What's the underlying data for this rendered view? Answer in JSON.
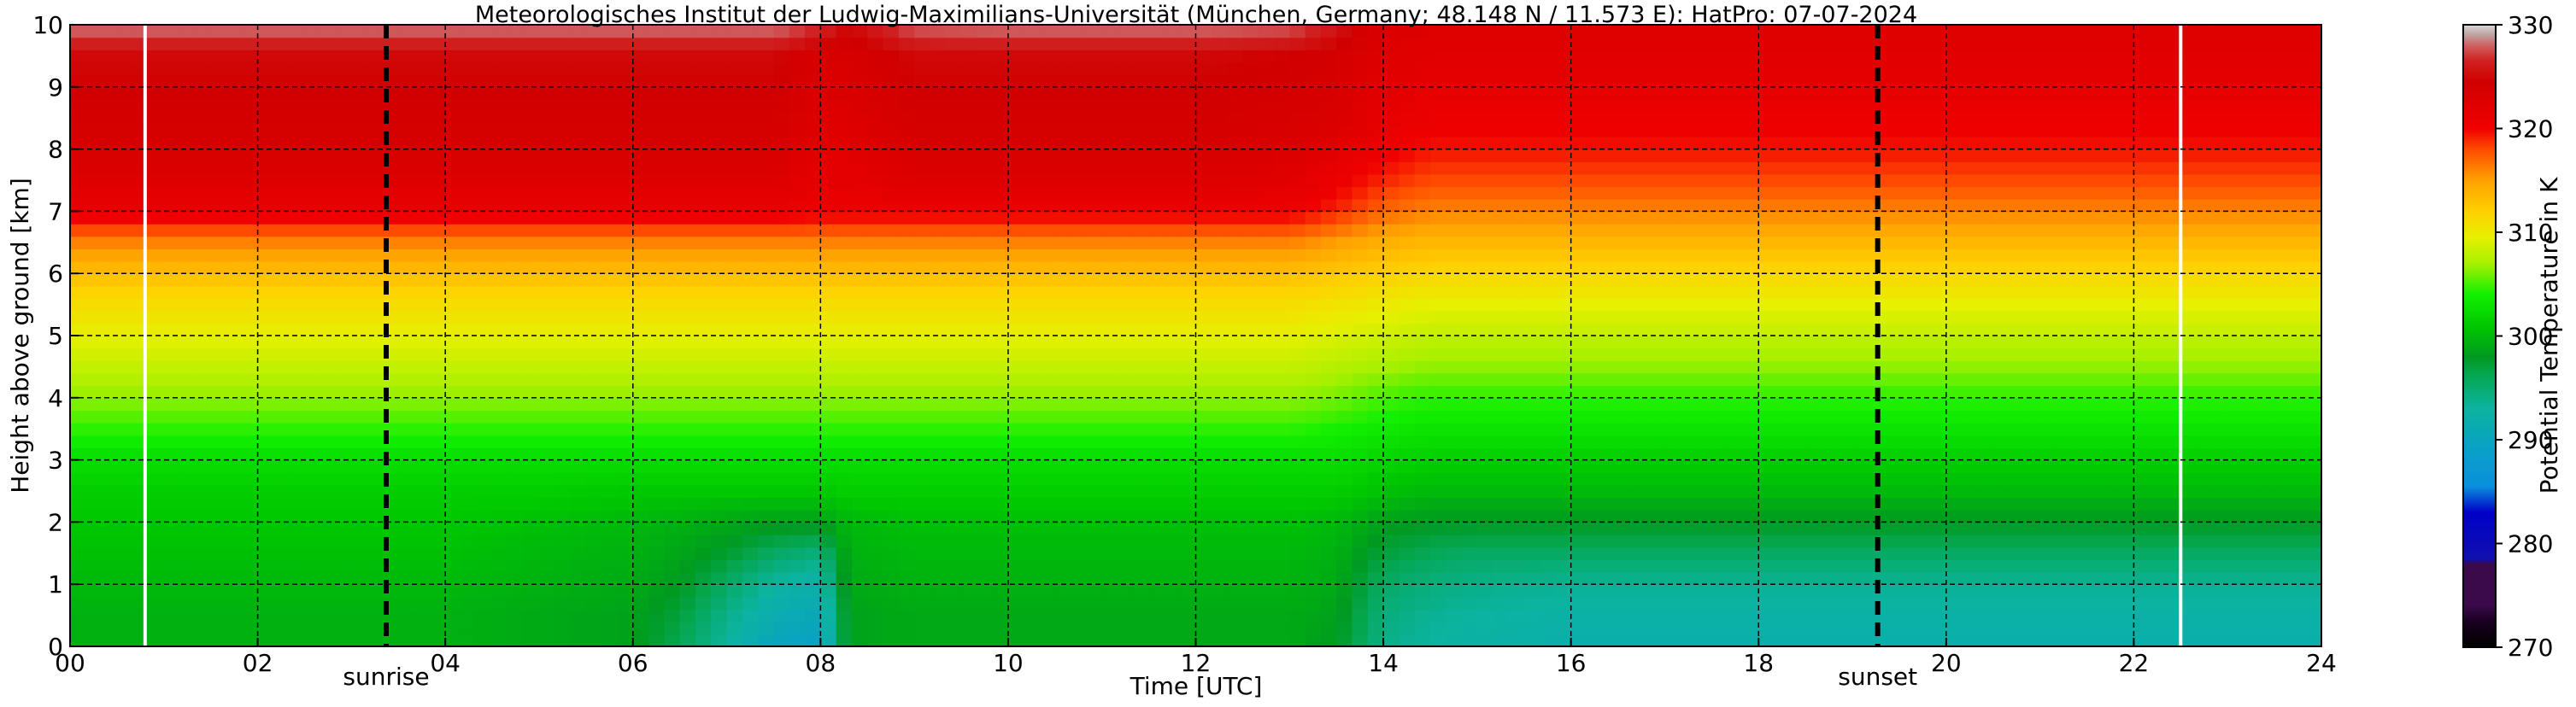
{
  "chart_data": {
    "type": "heatmap",
    "title": "Meteorologisches Institut der Ludwig-Maximilians-Universität (München, Germany; 48.148 N / 11.573 E):    HatPro: 07-07-2024",
    "xlabel": "Time [UTC]",
    "ylabel": "Height above ground [km]",
    "xlim": [
      0,
      24
    ],
    "ylim": [
      0,
      10
    ],
    "x_ticks": [
      0,
      2,
      4,
      6,
      8,
      10,
      12,
      14,
      16,
      18,
      20,
      22,
      24
    ],
    "x_tick_labels": [
      "00",
      "02",
      "04",
      "06",
      "08",
      "10",
      "12",
      "14",
      "16",
      "18",
      "20",
      "22",
      "24"
    ],
    "y_ticks": [
      0,
      1,
      2,
      3,
      4,
      5,
      6,
      7,
      8,
      9,
      10
    ],
    "y_tick_labels": [
      "0",
      "1",
      "2",
      "3",
      "4",
      "5",
      "6",
      "7",
      "8",
      "9",
      "10"
    ],
    "grid": true,
    "colorbar": {
      "label": "Potential Temperature in K",
      "range": [
        270,
        330
      ],
      "ticks": [
        270,
        280,
        290,
        300,
        310,
        320,
        330
      ],
      "tick_labels": [
        "270",
        "280",
        "290",
        "300",
        "310",
        "320",
        "330"
      ]
    },
    "markers": [
      {
        "label": "sunrise",
        "x": 3.37
      },
      {
        "label": "sunset",
        "x": 19.27
      }
    ],
    "data_gaps": [
      0.8,
      22.5
    ],
    "times": [
      0,
      1,
      2,
      3,
      4,
      5,
      6,
      6.5,
      7,
      7.5,
      8,
      8.3,
      9,
      10,
      11,
      12,
      13,
      13.5,
      14,
      14.5,
      15,
      16,
      17,
      18,
      19,
      20,
      21,
      22,
      23,
      24
    ],
    "heights": [
      0,
      0.5,
      1,
      1.5,
      2,
      2.5,
      3,
      3.5,
      4,
      4.5,
      5,
      5.5,
      6,
      6.5,
      7,
      7.5,
      8,
      8.5,
      9,
      9.5,
      10
    ],
    "values": [
      [
        299.5,
        299.5,
        299.5,
        299.5,
        299.5,
        299,
        298.5,
        296,
        293,
        290,
        289,
        298.5,
        299,
        299,
        299,
        299,
        299,
        298,
        294,
        293,
        292.5,
        292,
        292,
        292,
        292,
        292,
        292,
        292,
        292,
        292
      ],
      [
        299.5,
        299.5,
        299.5,
        299.5,
        299.5,
        299,
        298.5,
        297,
        294,
        291.5,
        290.5,
        298.5,
        299,
        299,
        299,
        299,
        299,
        298.5,
        294.5,
        293.5,
        293,
        292.5,
        292.5,
        292.5,
        292.5,
        292.5,
        292.5,
        292.5,
        292.5,
        292.5
      ],
      [
        300,
        300,
        300,
        300,
        300,
        299.5,
        299,
        298,
        295.5,
        293,
        292,
        299,
        299.5,
        299.5,
        299.5,
        299.5,
        299.5,
        299,
        295.5,
        294.5,
        294,
        293.5,
        293.5,
        293.5,
        293.5,
        293.5,
        293.5,
        293.5,
        293.5,
        293.5
      ],
      [
        300.5,
        300.5,
        300.5,
        300.5,
        300.5,
        300,
        299.5,
        298.8,
        297.5,
        295.5,
        294.5,
        299.5,
        300,
        300,
        300,
        300,
        300,
        299.5,
        297,
        296,
        295.5,
        295.5,
        295.5,
        295.5,
        295.5,
        295.5,
        295.5,
        295.5,
        295.5,
        295.5
      ],
      [
        301,
        301,
        301,
        301,
        301,
        300.5,
        300,
        299.5,
        299,
        298.5,
        298.5,
        300,
        300.5,
        300.5,
        300.5,
        300.5,
        300.5,
        300,
        298.5,
        298,
        298,
        298,
        298,
        298,
        298,
        298,
        298,
        298,
        298,
        298
      ],
      [
        301.5,
        301.5,
        301.5,
        301.5,
        301.5,
        301.5,
        301,
        301,
        301,
        301,
        301,
        301.5,
        301.5,
        301.5,
        301.5,
        301.5,
        301.5,
        301.5,
        300.5,
        300,
        300,
        300,
        300,
        300,
        300,
        300,
        300,
        300,
        300,
        300
      ],
      [
        302.5,
        302.5,
        302.5,
        302.5,
        302.5,
        302.5,
        302.5,
        302.5,
        302.5,
        302.5,
        302.5,
        302.5,
        302.5,
        302.5,
        302.5,
        302.5,
        302.5,
        302.5,
        302,
        301.5,
        301.5,
        301.5,
        301.5,
        301.5,
        301.5,
        301.5,
        301.5,
        301.5,
        301.5,
        301.5
      ],
      [
        304.5,
        304.5,
        304.5,
        304.5,
        304.5,
        304.5,
        304.5,
        304.5,
        304.5,
        304.5,
        304.5,
        304.5,
        304.5,
        304.5,
        304.5,
        304.5,
        304.5,
        304,
        303.5,
        303,
        303,
        303,
        303,
        303,
        303,
        303,
        303,
        303,
        303,
        303
      ],
      [
        306.5,
        306.5,
        306.5,
        306.5,
        306.5,
        306.5,
        306.5,
        306.5,
        306.5,
        306.5,
        306.5,
        306.5,
        306.5,
        306.5,
        306.5,
        306.5,
        306.5,
        306,
        305,
        304.5,
        304.5,
        304.5,
        304.5,
        304.5,
        304.5,
        304.5,
        304.5,
        304.5,
        304.5,
        304.5
      ],
      [
        308,
        308,
        308,
        308,
        308,
        308,
        308,
        308,
        308,
        308,
        308,
        308,
        308,
        308,
        308,
        308,
        308,
        307.5,
        307,
        306.5,
        306.5,
        306.5,
        306.5,
        306.5,
        306.5,
        306.5,
        306.5,
        306.5,
        306.5,
        306.5
      ],
      [
        309.5,
        309.5,
        309.5,
        309.5,
        309.5,
        309.5,
        309.5,
        309.5,
        309.5,
        309.5,
        309.5,
        309.5,
        309.5,
        309.5,
        309.5,
        309.5,
        309.5,
        309,
        308.5,
        308,
        308,
        308,
        308,
        308,
        308,
        308,
        308,
        308,
        308,
        308
      ],
      [
        311,
        311,
        311,
        311,
        311,
        311,
        311,
        311,
        311,
        311,
        311,
        311,
        311,
        311,
        311,
        311,
        311,
        310.5,
        310,
        309.5,
        309.5,
        309.5,
        309.5,
        309.5,
        309.5,
        309.5,
        309.5,
        309.5,
        309.5,
        309.5
      ],
      [
        313,
        313,
        313,
        313,
        313,
        313,
        313,
        313,
        313,
        313,
        313,
        313,
        313,
        313,
        313,
        313,
        313,
        312.5,
        312,
        311.5,
        311.5,
        311.5,
        311.5,
        311.5,
        311.5,
        311.5,
        311.5,
        311.5,
        311.5,
        311.5
      ],
      [
        316,
        316,
        316,
        316,
        316,
        316,
        316,
        316,
        316,
        316,
        316,
        316,
        316,
        316,
        316,
        316,
        316,
        315,
        314,
        313.5,
        313.5,
        313.5,
        313.5,
        313.5,
        313.5,
        313.5,
        313.5,
        313.5,
        313.5,
        313.5
      ],
      [
        321,
        321,
        321,
        321,
        321,
        321,
        321,
        321,
        321,
        321,
        320.5,
        320.5,
        320.5,
        320.5,
        320.5,
        320.5,
        320.5,
        319,
        317,
        316,
        316,
        316,
        316,
        316,
        316,
        316,
        316,
        316,
        316,
        316
      ],
      [
        322.5,
        322.5,
        322.5,
        322.5,
        322.5,
        322.5,
        322.5,
        322.5,
        322.5,
        322.5,
        321.5,
        321.5,
        322.5,
        322.5,
        322.5,
        322.5,
        322,
        320.5,
        319,
        318,
        318,
        318,
        318,
        318,
        318,
        318,
        318,
        318,
        318,
        318
      ],
      [
        323.5,
        323.5,
        323.5,
        323.5,
        323.5,
        323.5,
        323.5,
        323.5,
        323.5,
        323.5,
        322,
        322,
        323.5,
        323.5,
        323.5,
        323.5,
        323,
        322,
        320.5,
        319.5,
        319.5,
        319.5,
        319.5,
        319.5,
        319.5,
        319.5,
        319.5,
        319.5,
        319.5,
        319.5
      ],
      [
        324,
        324,
        324,
        324,
        324,
        324,
        324,
        324,
        324,
        324,
        322.5,
        322.5,
        324,
        324,
        324,
        324,
        323.5,
        323,
        321.5,
        320.5,
        320.5,
        320.5,
        320.5,
        320.5,
        320.5,
        320.5,
        320.5,
        320.5,
        320.5,
        320.5
      ],
      [
        324.5,
        324.5,
        324.5,
        324.5,
        324.5,
        324.5,
        324.5,
        324.5,
        324.5,
        324.5,
        323,
        323,
        324.5,
        324.5,
        324.5,
        324.5,
        324,
        323.5,
        322,
        321.5,
        321.5,
        321.5,
        321.5,
        321.5,
        321.5,
        321.5,
        321.5,
        321.5,
        321.5,
        321.5
      ],
      [
        325,
        325,
        325,
        325,
        325,
        325,
        325,
        325,
        325,
        325,
        323.5,
        323.5,
        325,
        325,
        325,
        325,
        324.5,
        324,
        322.5,
        322,
        322,
        322,
        322,
        322,
        322,
        322,
        322,
        322,
        322,
        322
      ],
      [
        328.5,
        328.5,
        328.5,
        328.5,
        328.5,
        328.5,
        328.5,
        328.5,
        328.5,
        328.5,
        327,
        325,
        328,
        328.5,
        328.5,
        328.5,
        328,
        326,
        323,
        322.5,
        322.5,
        322.5,
        322.5,
        322.5,
        322.5,
        322.5,
        322.5,
        322.5,
        322.5,
        322.5
      ]
    ],
    "colormap": [
      {
        "v": 270,
        "c": "#000000"
      },
      {
        "v": 272.5,
        "c": "#1a0020"
      },
      {
        "v": 274,
        "c": "#3a0a4a"
      },
      {
        "v": 278,
        "c": "#3a0a4a"
      },
      {
        "v": 278.5,
        "c": "#1010b0"
      },
      {
        "v": 283,
        "c": "#0000c8"
      },
      {
        "v": 285.5,
        "c": "#0a90dc"
      },
      {
        "v": 289,
        "c": "#09a0c8"
      },
      {
        "v": 293,
        "c": "#0cb3a0"
      },
      {
        "v": 296,
        "c": "#06a858"
      },
      {
        "v": 298,
        "c": "#009a20"
      },
      {
        "v": 301,
        "c": "#00c800"
      },
      {
        "v": 304,
        "c": "#12f000"
      },
      {
        "v": 307,
        "c": "#a8f000"
      },
      {
        "v": 309.5,
        "c": "#e6f000"
      },
      {
        "v": 312,
        "c": "#ffd000"
      },
      {
        "v": 315,
        "c": "#ffa000"
      },
      {
        "v": 318,
        "c": "#ff4a00"
      },
      {
        "v": 320,
        "c": "#f00000"
      },
      {
        "v": 324.5,
        "c": "#d00000"
      },
      {
        "v": 326.5,
        "c": "#d02020"
      },
      {
        "v": 328,
        "c": "#d06060"
      },
      {
        "v": 329,
        "c": "#c0a0a0"
      },
      {
        "v": 330,
        "c": "#d8d8d8"
      }
    ]
  }
}
